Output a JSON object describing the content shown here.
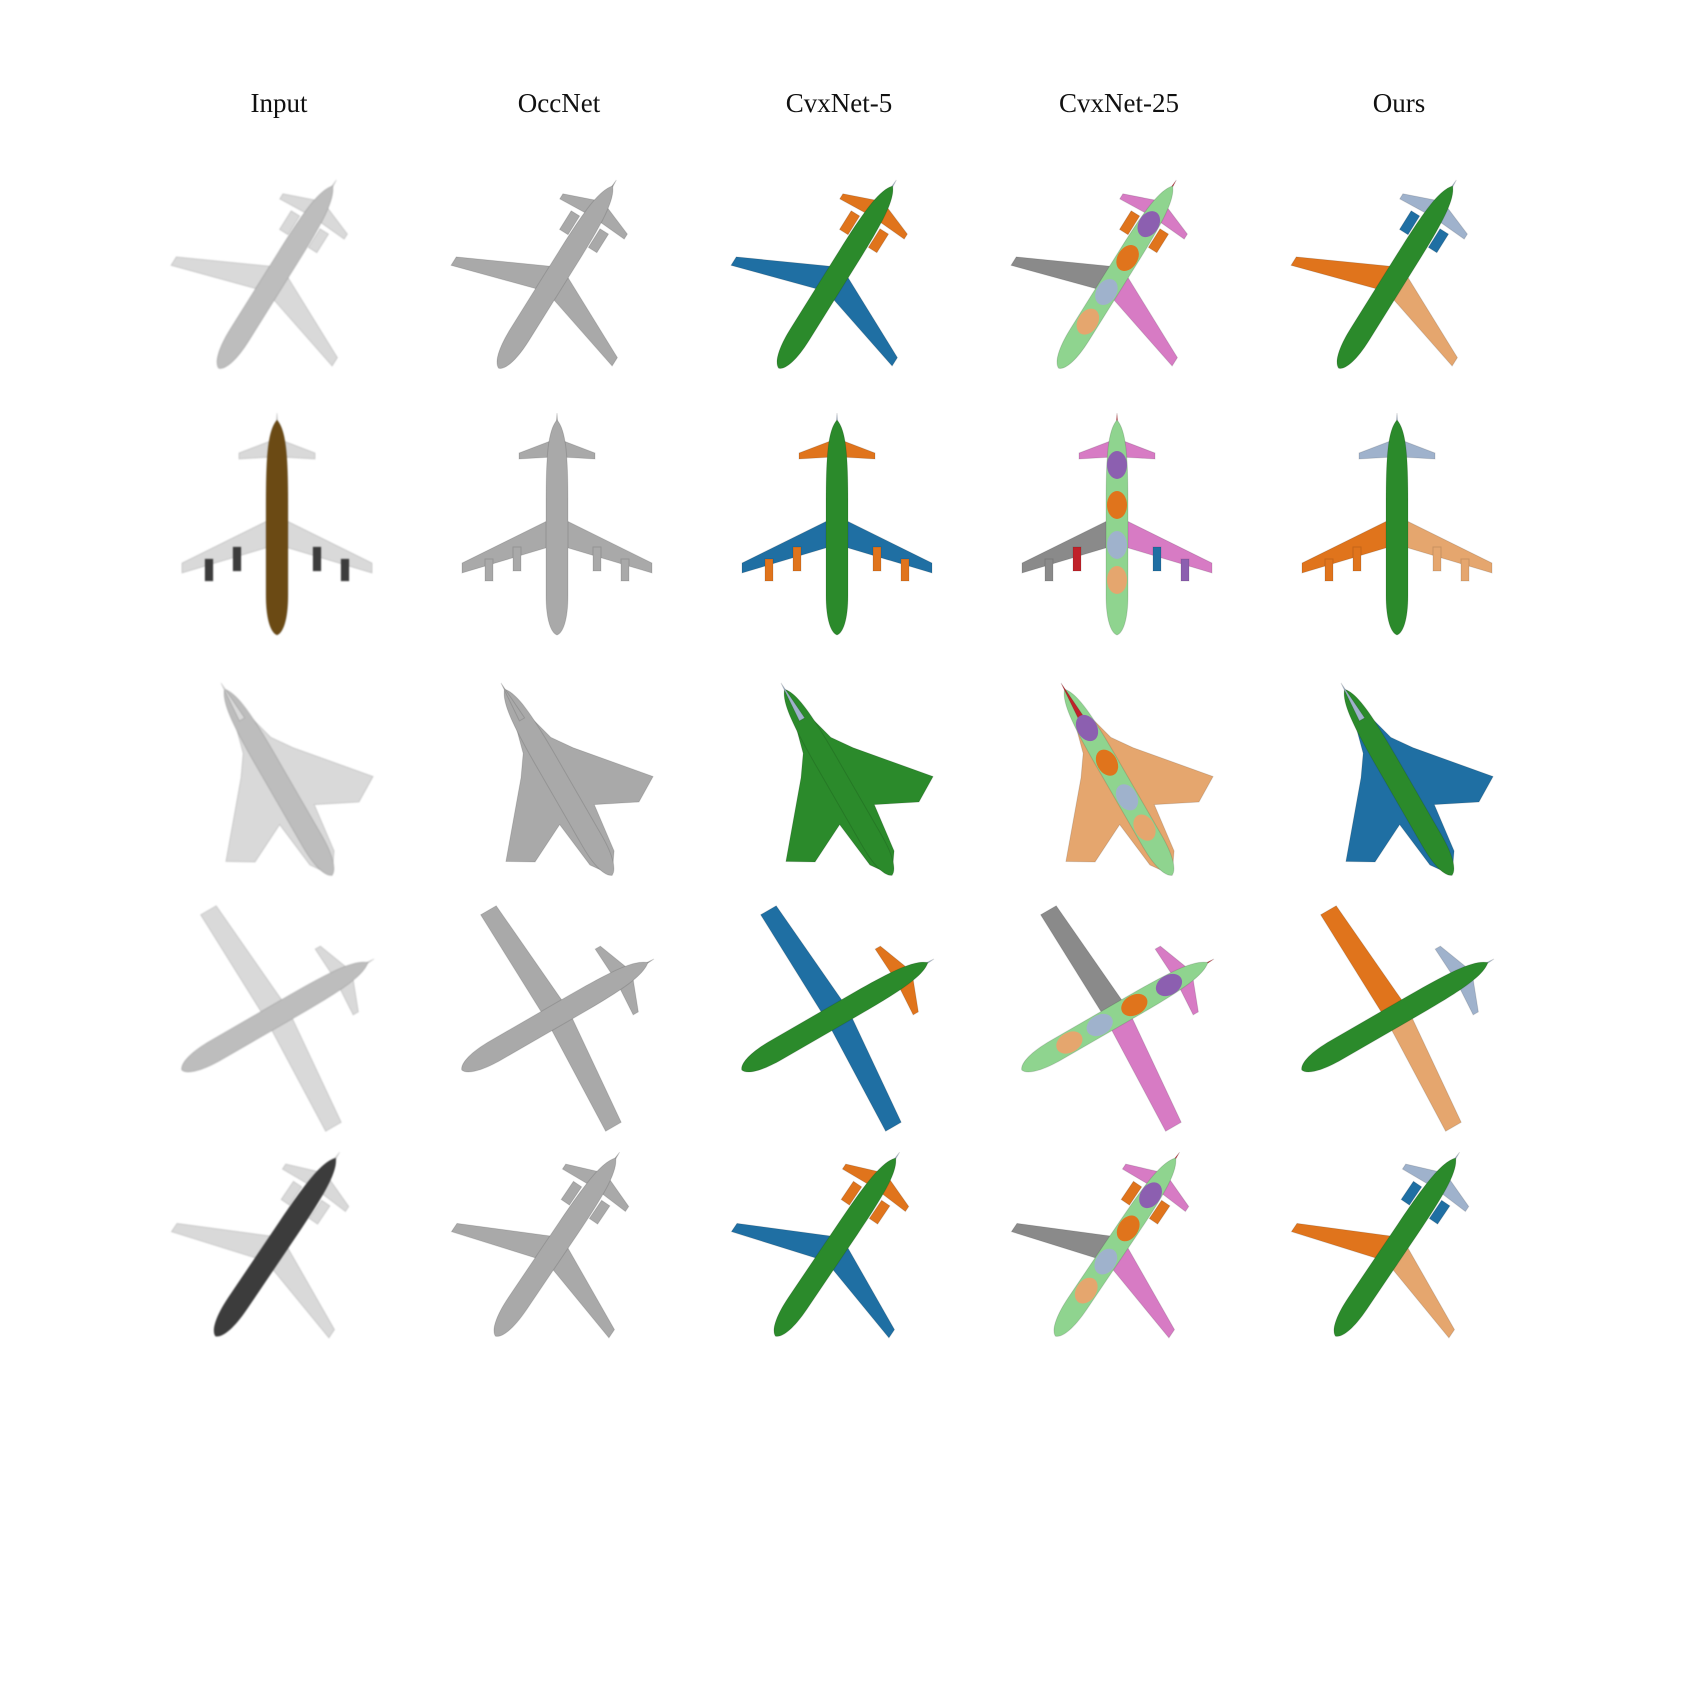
{
  "figure": {
    "columns": [
      {
        "id": "input",
        "label": "Input"
      },
      {
        "id": "occnet",
        "label": "OccNet"
      },
      {
        "id": "cvx5",
        "label": "CvxNet-5"
      },
      {
        "id": "cvx25",
        "label": "CvxNet-25"
      },
      {
        "id": "ours",
        "label": "Ours"
      }
    ],
    "rows": [
      {
        "id": "airliner-rear-engines"
      },
      {
        "id": "four-engine-jet-top-view"
      },
      {
        "id": "fighter-jet"
      },
      {
        "id": "light-propeller-plane"
      },
      {
        "id": "wide-body-jet"
      }
    ]
  },
  "palette": {
    "input_light": "#d9d9d9",
    "input_dark": "#3c3c3c",
    "input_brown": "#6b4a14",
    "input_yellow": "#c8c23a",
    "occnet_grey": "#a9a9a9",
    "part_green": "#2b8a2b",
    "part_orange": "#e0741c",
    "part_blue": "#1f6fa3",
    "part_tan": "#e5a66e",
    "part_steel": "#9fb2cc",
    "part_pink": "#d77bc4",
    "part_lightgreen": "#8fd48f",
    "part_red": "#c0222a",
    "part_purple": "#8c5fb0",
    "part_grey": "#8a8a8a"
  }
}
